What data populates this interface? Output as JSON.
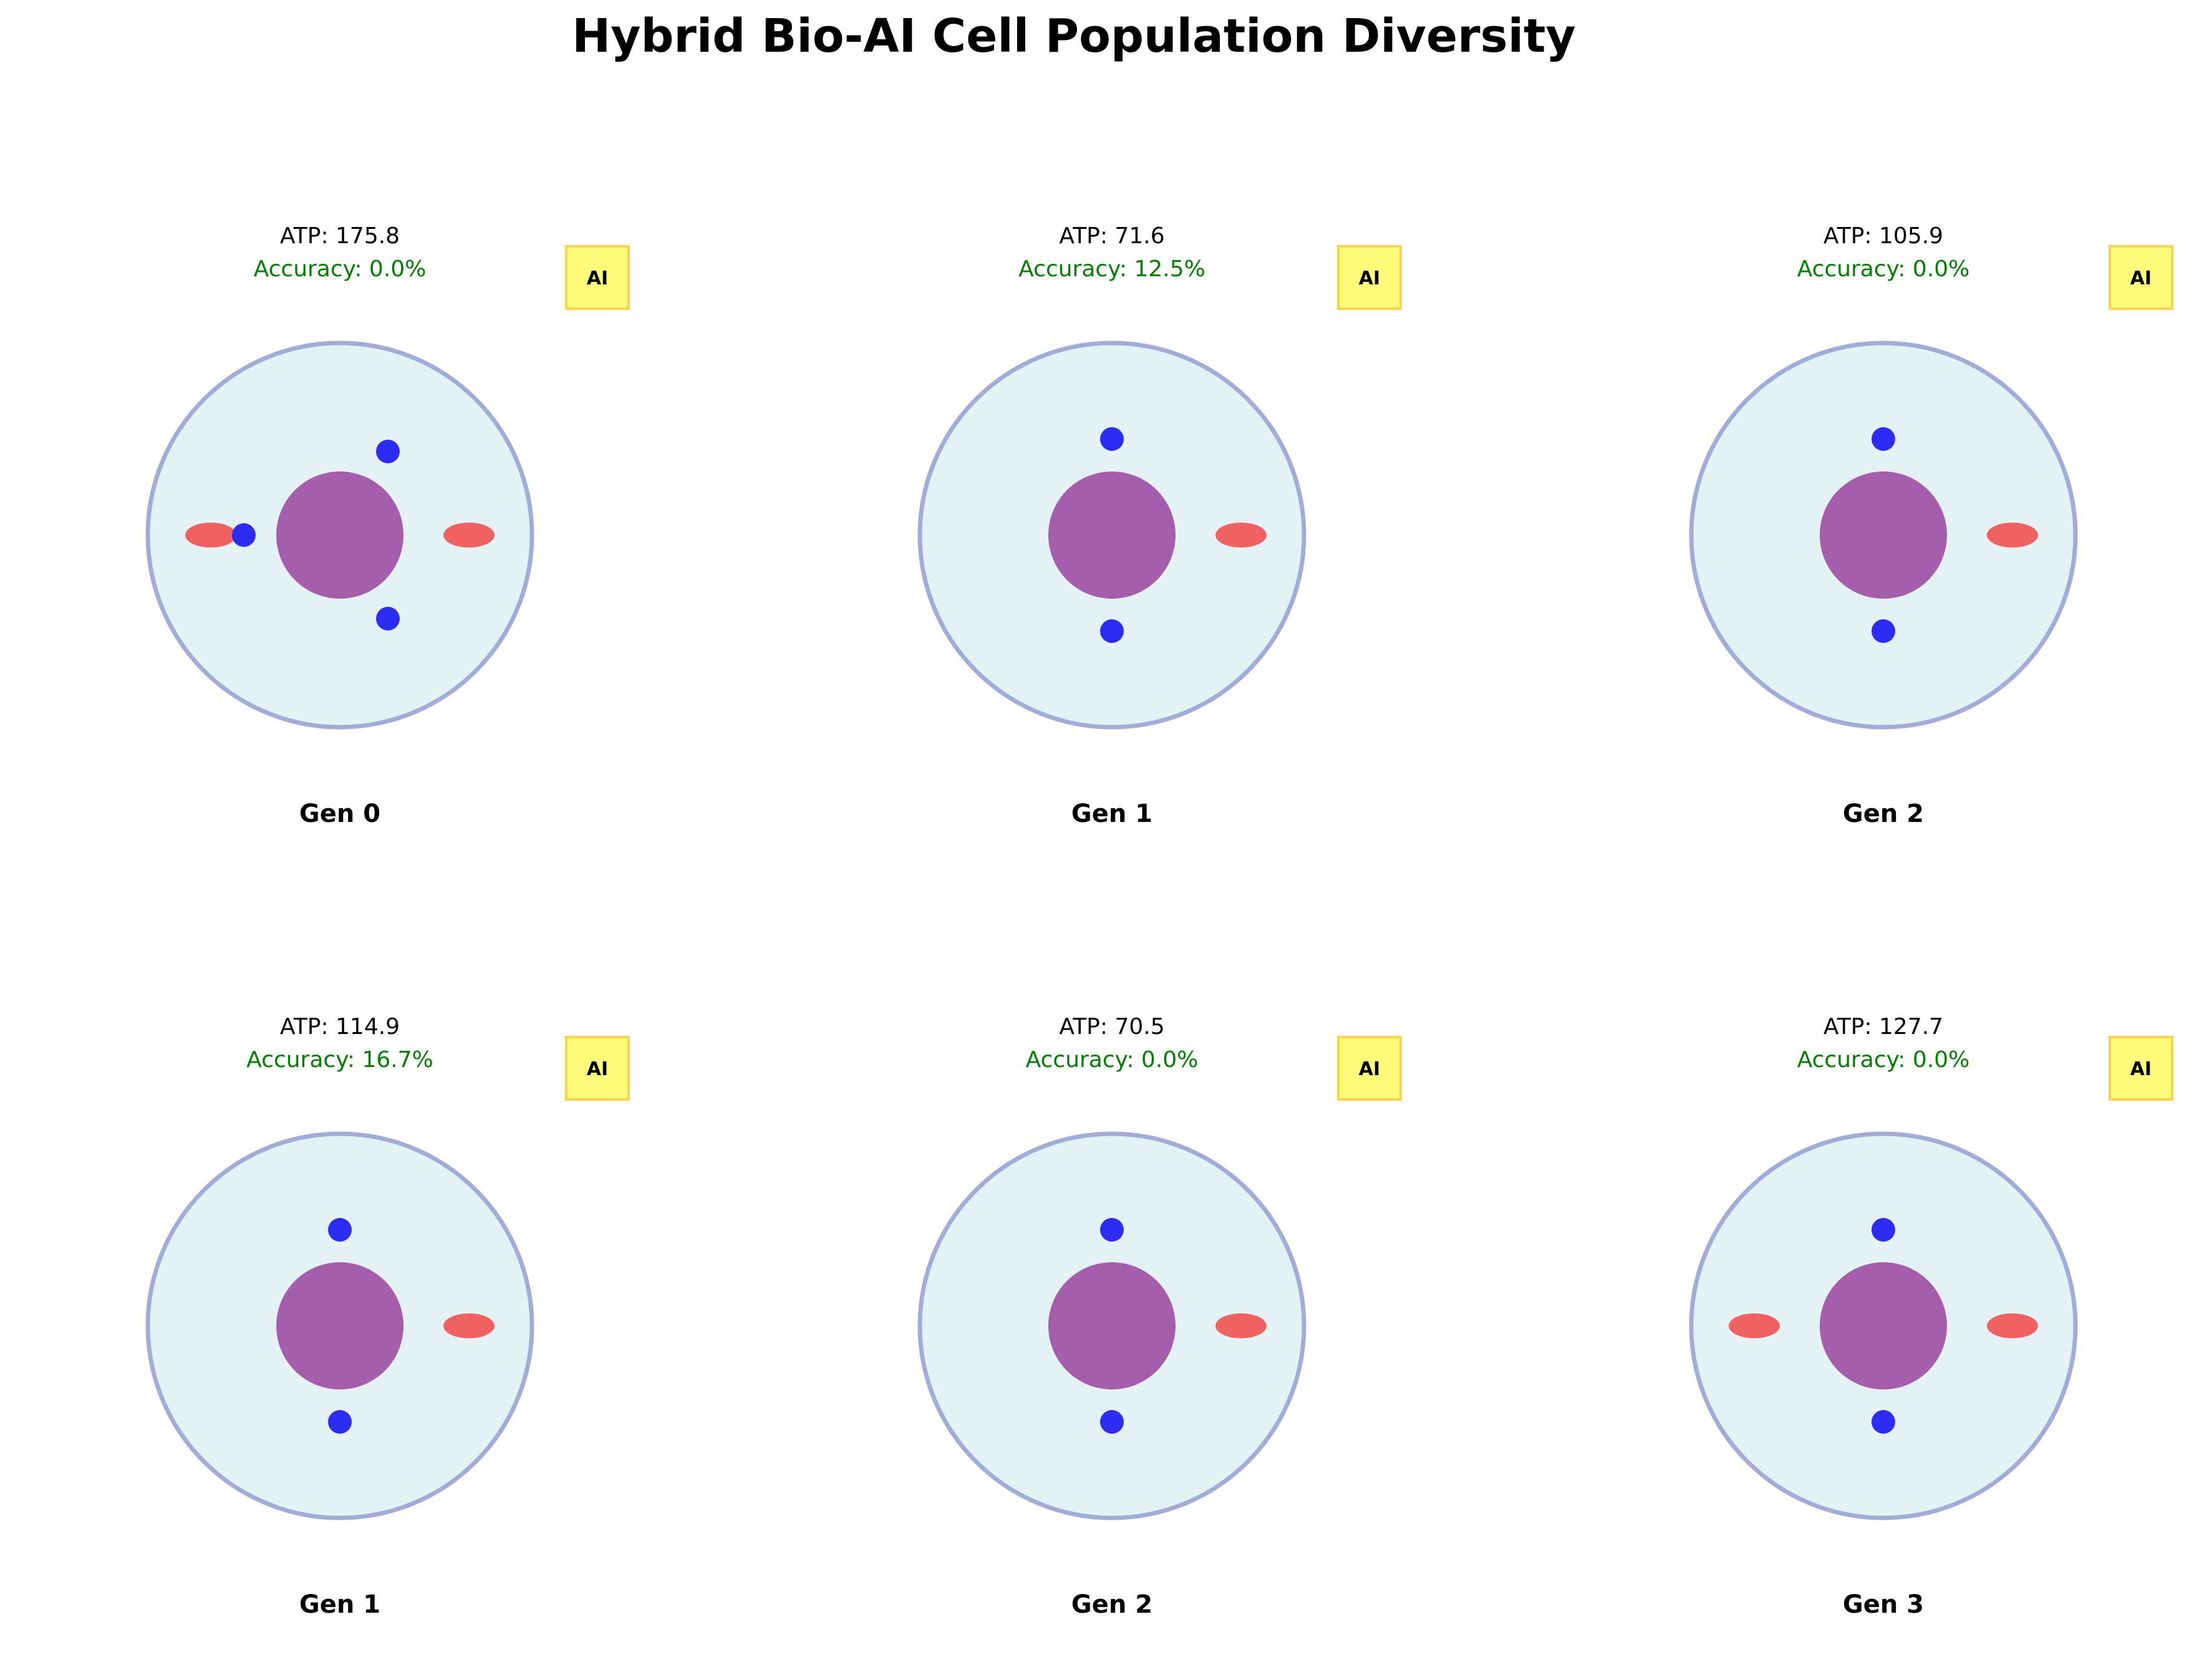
{
  "title": "Hybrid Bio-AI Cell Population Diversity",
  "colors": {
    "membrane_fill": "#e4f2f6",
    "membrane_stroke": "#a2acd8",
    "nucleus": "#a55eac",
    "ribosome": "#2c2cf3",
    "mitochondrion": "#f06262",
    "accuracy_text": "#008000",
    "badge_fill": "#fffb7a",
    "badge_stroke": "#ffd24d"
  },
  "cells": [
    {
      "generation_label": "Gen 0",
      "atp_text": "ATP: 175.8",
      "accuracy_text": "Accuracy: 0.0%",
      "badge": "AI",
      "ribosome_count": 3,
      "mitochondria": [
        "left",
        "right"
      ]
    },
    {
      "generation_label": "Gen 1",
      "atp_text": "ATP: 71.6",
      "accuracy_text": "Accuracy: 12.5%",
      "badge": "AI",
      "ribosome_count": 2,
      "mitochondria": [
        "right"
      ]
    },
    {
      "generation_label": "Gen 2",
      "atp_text": "ATP: 105.9",
      "accuracy_text": "Accuracy: 0.0%",
      "badge": "AI",
      "ribosome_count": 2,
      "mitochondria": [
        "right"
      ]
    },
    {
      "generation_label": "Gen 1",
      "atp_text": "ATP: 114.9",
      "accuracy_text": "Accuracy: 16.7%",
      "badge": "AI",
      "ribosome_count": 2,
      "mitochondria": [
        "right"
      ]
    },
    {
      "generation_label": "Gen 2",
      "atp_text": "ATP: 70.5",
      "accuracy_text": "Accuracy: 0.0%",
      "badge": "AI",
      "ribosome_count": 2,
      "mitochondria": [
        "right"
      ]
    },
    {
      "generation_label": "Gen 3",
      "atp_text": "ATP: 127.7",
      "accuracy_text": "Accuracy: 0.0%",
      "badge": "AI",
      "ribosome_count": 2,
      "mitochondria": [
        "left",
        "right"
      ]
    }
  ]
}
